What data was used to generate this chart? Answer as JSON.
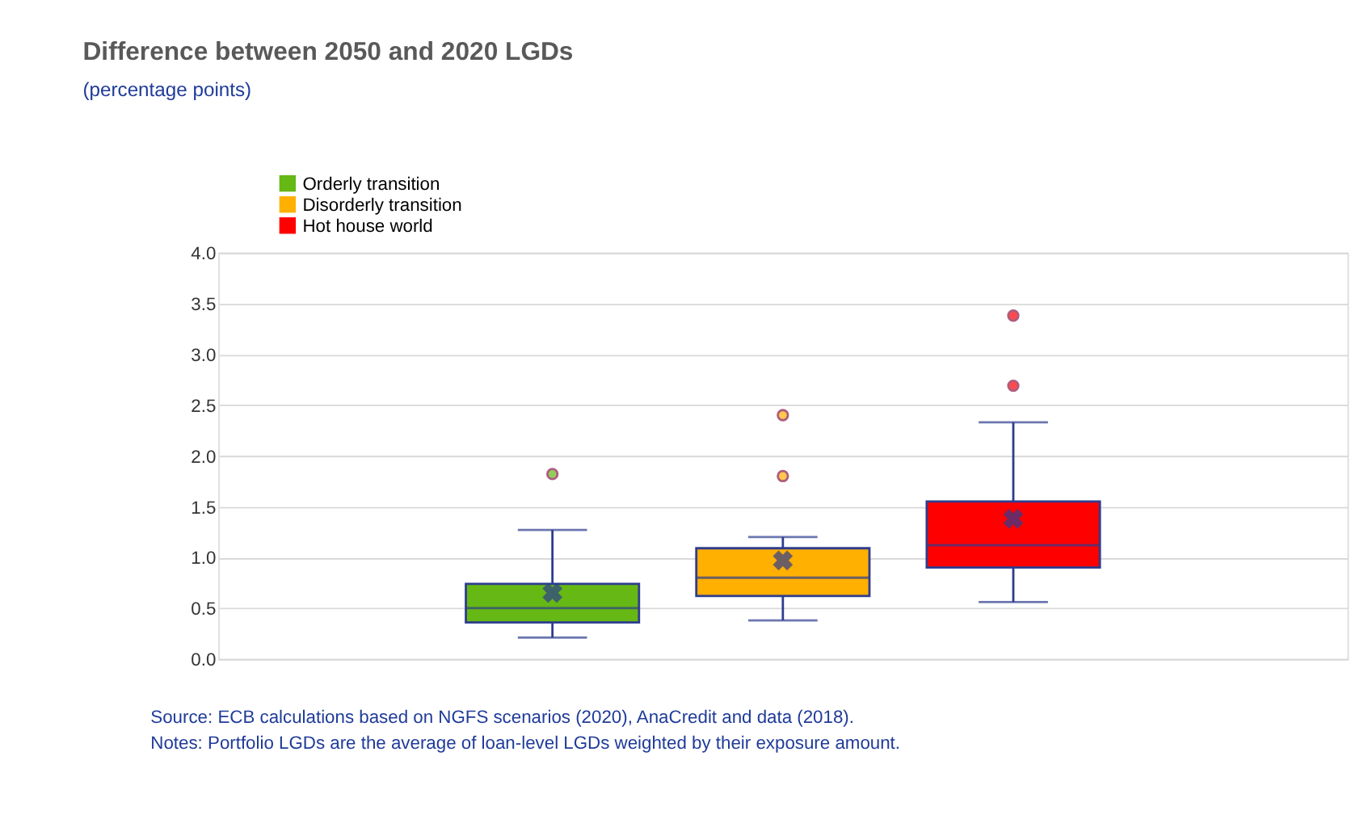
{
  "chart_data": {
    "type": "box",
    "title": "Difference between 2050 and 2020 LGDs",
    "subtitle": "(percentage points)",
    "categories": [
      null
    ],
    "series": [
      {
        "name": "Orderly transition",
        "color": "#66b814",
        "boxes": [
          {
            "low": 0.21,
            "q1": 0.36,
            "median": 0.5,
            "q3": 0.74,
            "high": 1.27,
            "mean": 0.65,
            "outliers": [
              1.82
            ]
          }
        ]
      },
      {
        "name": "Disorderly transition",
        "color": "#ffb000",
        "boxes": [
          {
            "low": 0.38,
            "q1": 0.62,
            "median": 0.8,
            "q3": 1.09,
            "high": 1.2,
            "mean": 0.97,
            "outliers": [
              1.8,
              2.4
            ]
          }
        ]
      },
      {
        "name": "Hot house world",
        "color": "#ff0000",
        "boxes": [
          {
            "low": 0.56,
            "q1": 0.9,
            "median": 1.12,
            "q3": 1.55,
            "high": 2.33,
            "mean": 1.38,
            "outliers": [
              2.69,
              3.38
            ]
          }
        ]
      }
    ],
    "ylim": [
      0,
      4
    ],
    "yticks": [
      {
        "value": 0,
        "label": "0.0"
      },
      {
        "value": 0.5,
        "label": "0.5"
      },
      {
        "value": 1,
        "label": "1.0"
      },
      {
        "value": 1.5,
        "label": "1.5"
      },
      {
        "value": 2,
        "label": "2.0"
      },
      {
        "value": 2.5,
        "label": "2.5"
      },
      {
        "value": 3,
        "label": "3.0"
      },
      {
        "value": 3.5,
        "label": "3.5"
      },
      {
        "value": 4,
        "label": "4.0"
      }
    ],
    "grid": "y",
    "legend": "top left",
    "annotations": [
      "Source: ECB calculations based on NGFS scenarios (2020), AnaCredit and data (2018).",
      "Notes: Portfolio LGDs are the average of loan-level LGDs weighted by their exposure amount."
    ]
  }
}
